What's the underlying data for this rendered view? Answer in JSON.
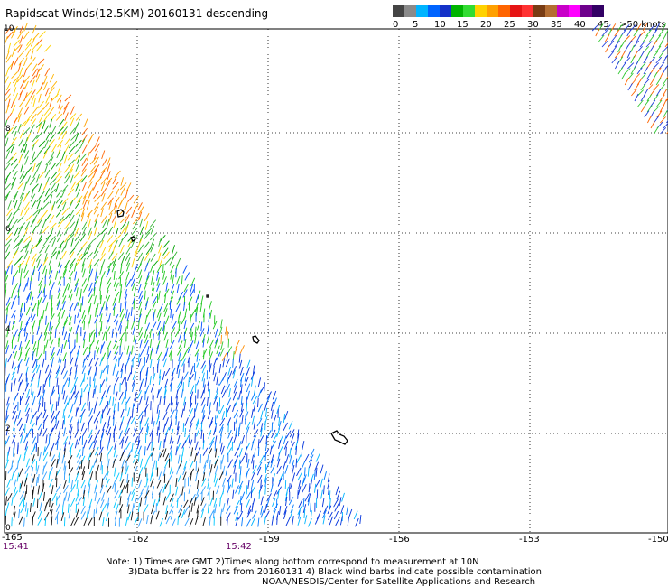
{
  "title": "Rapidscat Winds(12.5KM) 20160131 descending",
  "legend": {
    "colors": [
      "#444444",
      "#8a8a8a",
      "#00b4ff",
      "#0064ff",
      "#1432c8",
      "#00b400",
      "#32dc32",
      "#ffd200",
      "#ffa000",
      "#ff6400",
      "#e61414",
      "#ff3232",
      "#783c14",
      "#b46e32",
      "#c800c8",
      "#ff00ff",
      "#6e008c",
      "#320064"
    ],
    "labels": [
      "0",
      "5",
      "10",
      "15",
      "20",
      "25",
      "30",
      "35",
      "40",
      "45",
      ">50 knots"
    ]
  },
  "axes": {
    "lon_ticks": [
      "-165",
      "-162",
      "-159",
      "-156",
      "-153",
      "-150"
    ],
    "lat_ticks": [
      "0",
      "2",
      "4",
      "6",
      "8",
      "10"
    ]
  },
  "times": {
    "left": "15:41",
    "middle": "15:42"
  },
  "notes": [
    "Note: 1) Times are GMT 2)Times along bottom correspond to measurement at 10N",
    "3)Data buffer is 22 hrs from 20160131 4) Black wind barbs indicate possible contamination",
    "NOAA/NESDIS/Center for Satellite Applications and Research"
  ]
}
